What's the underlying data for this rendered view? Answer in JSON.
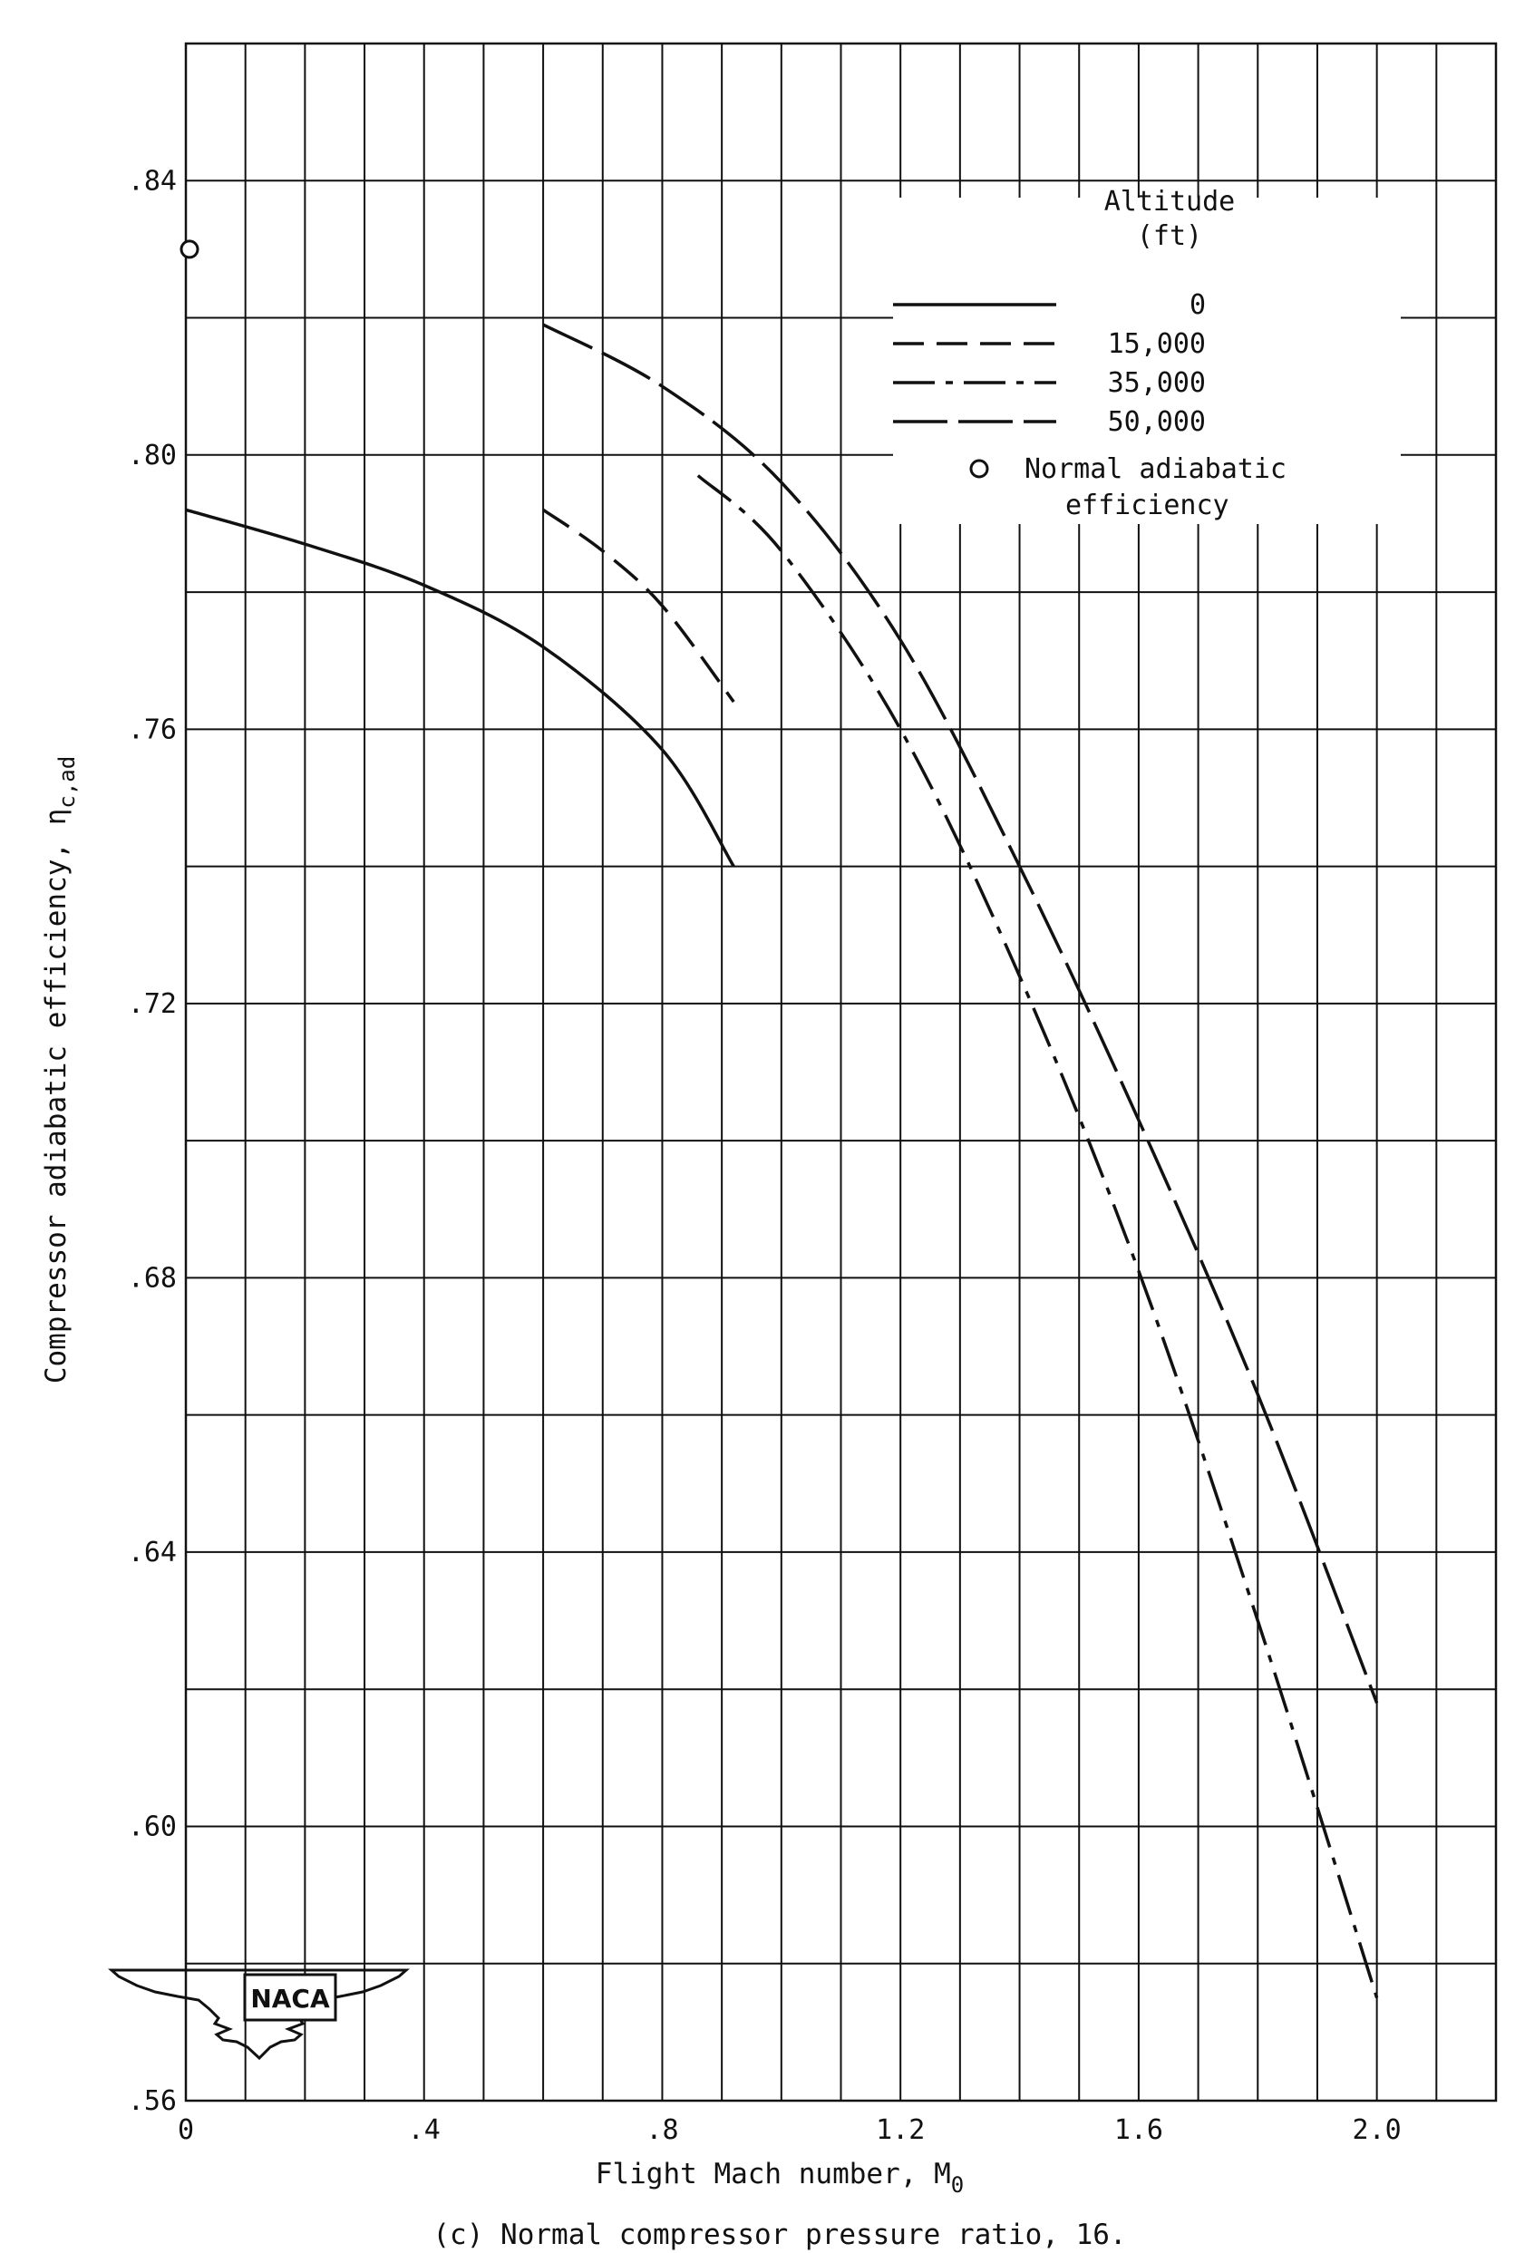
{
  "chart_data": {
    "type": "line",
    "caption": "(c)  Normal compressor pressure ratio, 16.",
    "xlabel": "Flight Mach number, M",
    "xlabel_sub": "0",
    "ylabel": "Compressor adiabatic efficiency, η",
    "ylabel_sub": "c,ad",
    "xlim": [
      0,
      2.2
    ],
    "ylim": [
      0.56,
      0.86
    ],
    "x_ticks": [
      {
        "value": 0,
        "label": "0"
      },
      {
        "value": 0.4,
        "label": ".4"
      },
      {
        "value": 0.8,
        "label": ".8"
      },
      {
        "value": 1.2,
        "label": "1.2"
      },
      {
        "value": 1.6,
        "label": "1.6"
      },
      {
        "value": 2.0,
        "label": "2.0"
      }
    ],
    "y_ticks": [
      {
        "value": 0.56,
        "label": ".56"
      },
      {
        "value": 0.6,
        "label": ".60"
      },
      {
        "value": 0.64,
        "label": ".64"
      },
      {
        "value": 0.68,
        "label": ".68"
      },
      {
        "value": 0.72,
        "label": ".72"
      },
      {
        "value": 0.76,
        "label": ".76"
      },
      {
        "value": 0.8,
        "label": ".80"
      },
      {
        "value": 0.84,
        "label": ".84"
      }
    ],
    "grid": true,
    "legend": {
      "title_line1": "Altitude",
      "title_line2": "(ft)",
      "placement": "top-right",
      "marker_label_line1": "Normal adiabatic",
      "marker_label_line2": "efficiency"
    },
    "series": [
      {
        "name": "0",
        "dash": "solid",
        "x": [
          0,
          0.2,
          0.4,
          0.6,
          0.8,
          0.92
        ],
        "y": [
          0.792,
          0.787,
          0.781,
          0.772,
          0.757,
          0.74
        ]
      },
      {
        "name": "15,000",
        "dash": "dashed",
        "x": [
          0.6,
          0.7,
          0.8,
          0.92
        ],
        "y": [
          0.792,
          0.786,
          0.778,
          0.764
        ]
      },
      {
        "name": "35,000",
        "dash": "dashdot",
        "x": [
          0.86,
          1.0,
          1.2,
          1.4,
          1.6,
          1.8,
          2.0
        ],
        "y": [
          0.797,
          0.786,
          0.76,
          0.724,
          0.681,
          0.63,
          0.575
        ]
      },
      {
        "name": "50,000",
        "dash": "longdash",
        "x": [
          0.6,
          0.8,
          1.0,
          1.2,
          1.4,
          1.6,
          1.8,
          2.0
        ],
        "y": [
          0.819,
          0.81,
          0.796,
          0.773,
          0.74,
          0.703,
          0.663,
          0.618
        ]
      }
    ],
    "points": [
      {
        "name": "Normal adiabatic efficiency",
        "x": 0,
        "y": 0.83
      }
    ]
  },
  "logo": {
    "text": "NACA"
  },
  "colors": {
    "ink": "#111111",
    "grid": "#111111",
    "paper": "#ffffff"
  }
}
